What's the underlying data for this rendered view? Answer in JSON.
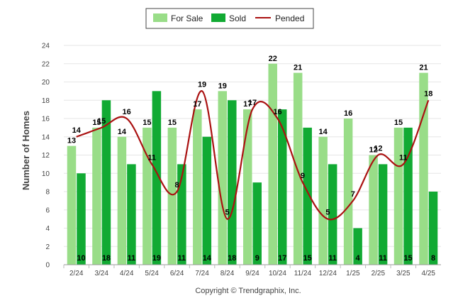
{
  "chart_data": {
    "type": "bar",
    "title": "",
    "xlabel": "",
    "ylabel": "Number of Homes",
    "ylim": [
      0,
      24
    ],
    "yticks": [
      0,
      2,
      4,
      6,
      8,
      10,
      12,
      14,
      16,
      18,
      20,
      22,
      24
    ],
    "grid": true,
    "legend_position": "top-center",
    "categories": [
      "2/24",
      "3/24",
      "4/24",
      "5/24",
      "6/24",
      "7/24",
      "8/24",
      "9/24",
      "10/24",
      "11/24",
      "12/24",
      "1/25",
      "2/25",
      "3/25",
      "4/25"
    ],
    "series": [
      {
        "name": "For Sale",
        "kind": "bar",
        "color": "#99dd88",
        "values": [
          13,
          15,
          14,
          15,
          15,
          17,
          19,
          17,
          22,
          21,
          14,
          16,
          12,
          15,
          21
        ]
      },
      {
        "name": "Sold",
        "kind": "bar",
        "color": "#11aa33",
        "values": [
          10,
          18,
          11,
          19,
          11,
          14,
          18,
          9,
          17,
          15,
          11,
          4,
          11,
          15,
          8
        ]
      },
      {
        "name": "Pended",
        "kind": "line",
        "color": "#aa1111",
        "values": [
          14,
          15,
          16,
          11,
          8,
          19,
          5,
          17,
          16,
          9,
          5,
          7,
          12,
          11,
          18
        ]
      }
    ]
  },
  "footer": {
    "copyright": "Copyright © Trendgraphix, Inc."
  }
}
